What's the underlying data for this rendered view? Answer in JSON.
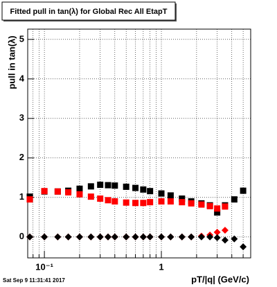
{
  "chart_data": {
    "type": "scatter",
    "title": "Fitted pull in tan(λ) for Global Rec All EtapT",
    "x_label": "pT/|q| (GeV/c)",
    "y_label": "pull in tan(λ)",
    "timestamp": "Sat Sep  9 11:31:41 2017",
    "x_log": true,
    "grid": true,
    "xlim": [
      0.072,
      5.8
    ],
    "ylim": [
      -0.53,
      5.26
    ],
    "xticks": [
      {
        "value": 0.1,
        "label": "10⁻¹"
      },
      1
    ],
    "xminor_ticks": [
      0.08,
      0.09,
      0.2,
      0.3,
      0.4,
      0.5,
      0.6,
      0.7,
      0.8,
      0.9,
      2,
      3,
      4,
      5
    ],
    "yticks": [
      0,
      1,
      2,
      3,
      4,
      5
    ],
    "x": [
      0.075,
      0.1,
      0.13,
      0.16,
      0.2,
      0.25,
      0.3,
      0.35,
      0.4,
      0.5,
      0.6,
      0.7,
      0.8,
      1.0,
      1.2,
      1.5,
      1.8,
      2.2,
      2.6,
      3.0,
      3.5,
      4.2,
      5.0
    ],
    "series": [
      {
        "marker": "square",
        "color": "#000000",
        "values": [
          1.02,
          1.15,
          1.15,
          1.17,
          1.22,
          1.28,
          1.32,
          1.31,
          1.3,
          1.27,
          1.24,
          1.2,
          1.16,
          1.1,
          1.05,
          0.97,
          0.9,
          0.85,
          0.8,
          0.62,
          0.8,
          0.95,
          1.17
        ]
      },
      {
        "marker": "square",
        "color": "#ff0000",
        "values": [
          0.95,
          1.16,
          1.15,
          1.13,
          1.08,
          1.02,
          0.97,
          0.93,
          0.9,
          0.87,
          0.86,
          0.86,
          0.88,
          0.9,
          0.9,
          0.88,
          0.85,
          0.82,
          0.78,
          0.72,
          0.77,
          null,
          null
        ]
      },
      {
        "marker": "diamond",
        "color": "#ff0000",
        "values": [
          0,
          0,
          0,
          0,
          0,
          0,
          0,
          0,
          0,
          0,
          0,
          0,
          0,
          0,
          0,
          0,
          0,
          0.02,
          0.05,
          0.12,
          0.17,
          null,
          null
        ]
      },
      {
        "marker": "diamond",
        "color": "#000000",
        "values": [
          0,
          0,
          0,
          0,
          0,
          0,
          0,
          0,
          0,
          0,
          0,
          0,
          0,
          0,
          0,
          0,
          0,
          0,
          0,
          -0.02,
          -0.08,
          -0.05,
          -0.25
        ]
      }
    ]
  }
}
